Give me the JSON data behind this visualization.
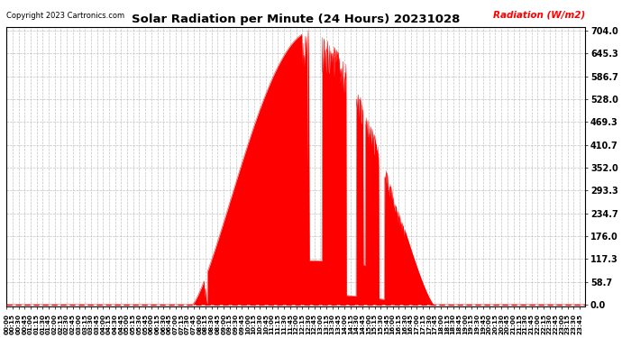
{
  "title": "Solar Radiation per Minute (24 Hours) 20231028",
  "ylabel_text": "Radiation (W/m2)",
  "copyright": "Copyright 2023 Cartronics.com",
  "background_color": "#ffffff",
  "plot_bg_color": "#ffffff",
  "fill_color": "#ff0000",
  "line_color": "#ff0000",
  "dashed_line_color": "#ff0000",
  "grid_color": "#bbbbbb",
  "ylabel_color": "#ff0000",
  "title_color": "#000000",
  "copyright_color": "#000000",
  "yticks": [
    0.0,
    58.7,
    117.3,
    176.0,
    234.7,
    293.3,
    352.0,
    410.7,
    469.3,
    528.0,
    586.7,
    645.3,
    704.0
  ],
  "ymax": 704.0,
  "ymin": 0.0,
  "total_minutes": 1440,
  "sunrise_minute": 462,
  "sunset_minute": 1062,
  "peak_minute": 738,
  "peak_value": 704.0,
  "tick_interval_minutes": 15,
  "smooth_exponent": 1.3
}
